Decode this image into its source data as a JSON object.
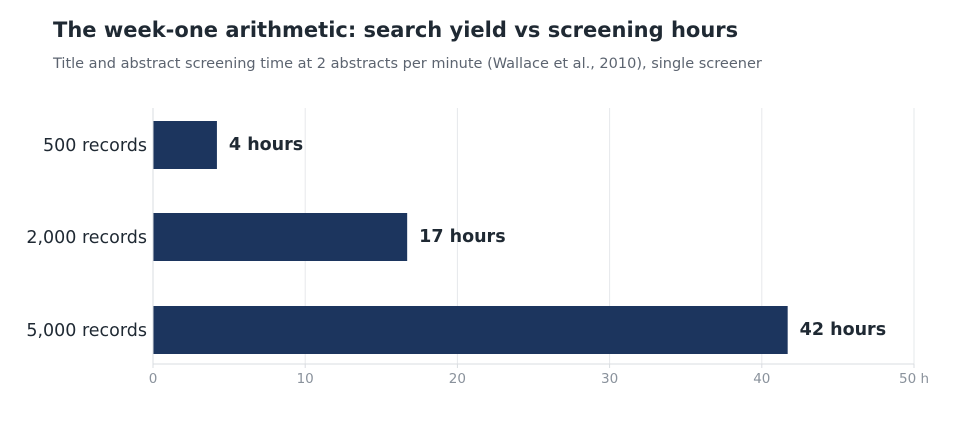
{
  "chart_data": {
    "type": "bar",
    "orientation": "horizontal",
    "title": "The week-one arithmetic: search yield vs screening hours",
    "subtitle": "Title and abstract screening time at 2 abstracts per minute (Wallace et al., 2010), single screener",
    "categories": [
      "500 records",
      "2,000 records",
      "5,000 records"
    ],
    "values": [
      4.2,
      16.7,
      41.7
    ],
    "value_labels": [
      "4 hours",
      "17 hours",
      "42 hours"
    ],
    "xlabel": "",
    "ylabel": "",
    "xlim": [
      0,
      50
    ],
    "x_ticks": [
      0,
      10,
      20,
      30,
      40,
      50
    ],
    "x_tick_labels": [
      "0",
      "10",
      "20",
      "30",
      "40",
      "50 h"
    ],
    "grid": true,
    "legend": "none",
    "colors": {
      "bar": "#1c355e",
      "grid": "#e6e8eb",
      "axis": "#d9dce0"
    }
  }
}
